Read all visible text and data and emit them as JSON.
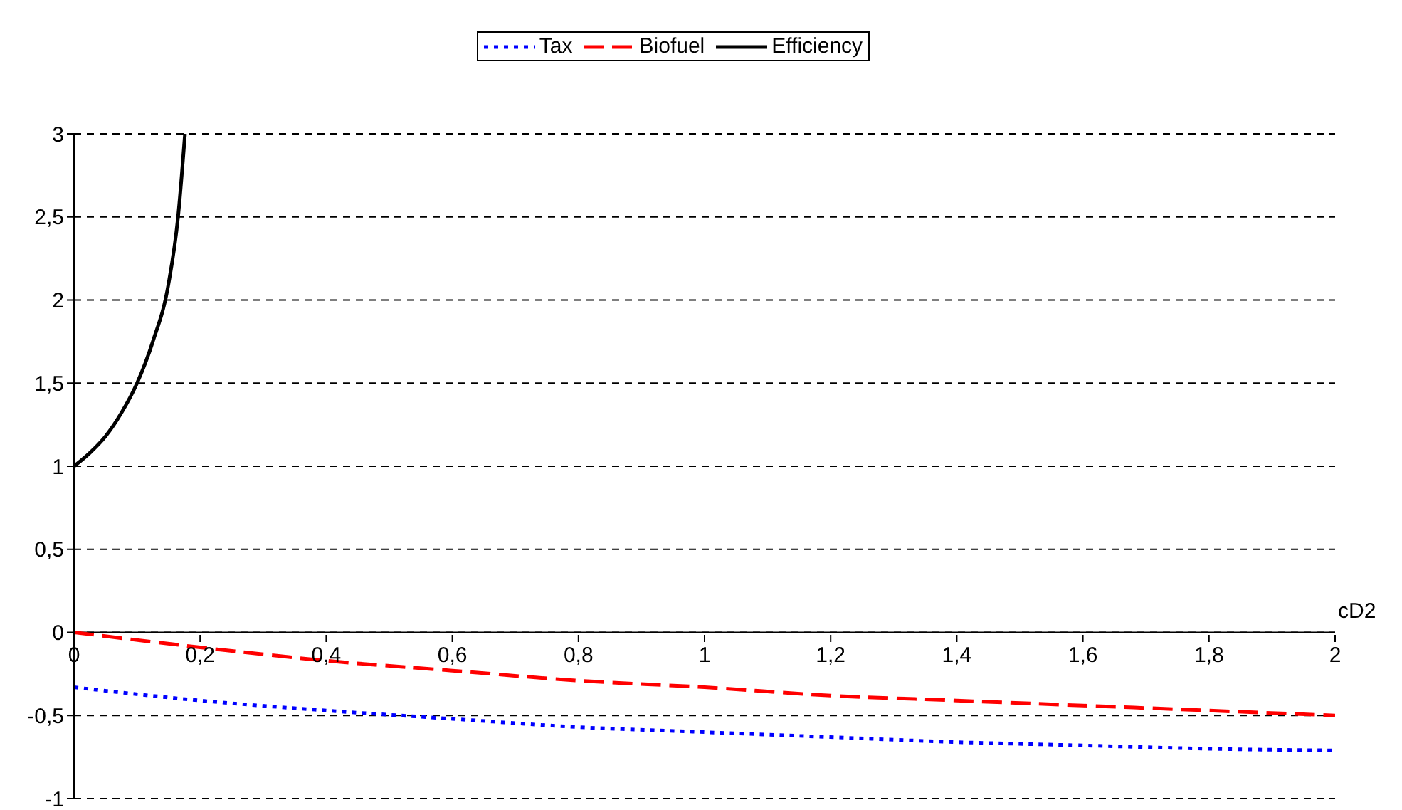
{
  "chart_data": {
    "type": "line",
    "xlabel": "cD2",
    "xlim": [
      0,
      2
    ],
    "xticks": [
      {
        "value": 0,
        "label": "0"
      },
      {
        "value": 0.2,
        "label": "0,2"
      },
      {
        "value": 0.4,
        "label": "0,4"
      },
      {
        "value": 0.6,
        "label": "0,6"
      },
      {
        "value": 0.8,
        "label": "0,8"
      },
      {
        "value": 1,
        "label": "1"
      },
      {
        "value": 1.2,
        "label": "1,2"
      },
      {
        "value": 1.4,
        "label": "1,4"
      },
      {
        "value": 1.6,
        "label": "1,6"
      },
      {
        "value": 1.8,
        "label": "1,8"
      },
      {
        "value": 2,
        "label": "2"
      }
    ],
    "ylim": [
      -1,
      3
    ],
    "yticks": [
      {
        "value": -1,
        "label": "-1"
      },
      {
        "value": -0.5,
        "label": "-0,5"
      },
      {
        "value": 0,
        "label": "0"
      },
      {
        "value": 0.5,
        "label": "0,5"
      },
      {
        "value": 1,
        "label": "1"
      },
      {
        "value": 1.5,
        "label": "1,5"
      },
      {
        "value": 2,
        "label": "2"
      },
      {
        "value": 2.5,
        "label": "2,5"
      },
      {
        "value": 3,
        "label": "3"
      }
    ],
    "grid": "y",
    "legend": "top",
    "marker": "none",
    "series": [
      {
        "name": "Tax",
        "color": "#0000ff",
        "line_style": "dotted",
        "x": [
          0,
          0.2,
          0.4,
          0.6,
          0.8,
          1,
          1.2,
          1.4,
          1.6,
          1.8,
          2
        ],
        "values": [
          -0.33,
          -0.41,
          -0.47,
          -0.52,
          -0.57,
          -0.6,
          -0.63,
          -0.66,
          -0.68,
          -0.7,
          -0.71
        ]
      },
      {
        "name": "Biofuel",
        "color": "#ff0000",
        "line_style": "dashed",
        "x": [
          0,
          0.2,
          0.4,
          0.6,
          0.8,
          1,
          1.2,
          1.4,
          1.6,
          1.8,
          2
        ],
        "values": [
          0,
          -0.09,
          -0.17,
          -0.23,
          -0.29,
          -0.33,
          -0.38,
          -0.41,
          -0.44,
          -0.47,
          -0.5
        ]
      },
      {
        "name": "Efficiency",
        "color": "#000000",
        "line_style": "solid",
        "x": [
          0,
          0.025,
          0.05,
          0.075,
          0.1,
          0.125,
          0.15,
          0.165,
          0.176
        ],
        "values": [
          1,
          1.08,
          1.18,
          1.32,
          1.5,
          1.75,
          2.1,
          2.5,
          3
        ]
      }
    ]
  }
}
